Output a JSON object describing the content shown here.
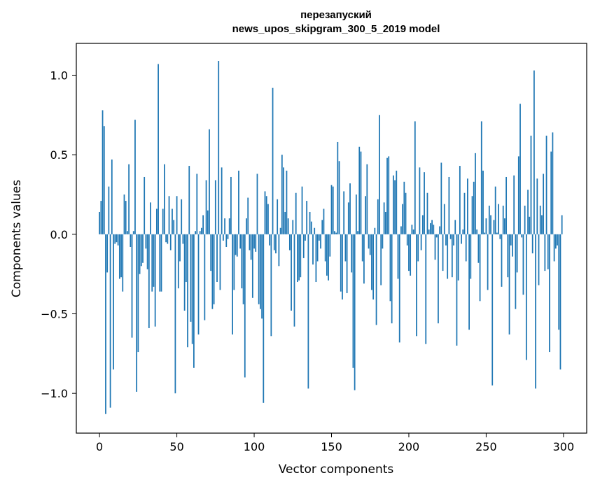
{
  "chart_data": {
    "type": "bar",
    "title": "перезапуский\nnews_upos_skipgram_300_5_2019 model",
    "xlabel": "Vector components",
    "ylabel": "Components values",
    "xlim": [
      -15,
      315
    ],
    "ylim": [
      -1.25,
      1.2
    ],
    "x_ticks": [
      0,
      50,
      100,
      150,
      200,
      250,
      300
    ],
    "x_tick_labels": [
      "0",
      "50",
      "100",
      "150",
      "200",
      "250",
      "300"
    ],
    "y_ticks": [
      1.0,
      0.5,
      0.0,
      -0.5,
      -1.0
    ],
    "y_tick_labels": [
      "1.0",
      "0.5",
      "0.0",
      "−0.5",
      "−1.0"
    ],
    "bar_color": "#1f77b4",
    "grid": false,
    "legend": "none",
    "values": [
      0.14,
      0.21,
      0.78,
      0.68,
      -1.13,
      -0.24,
      0.3,
      -1.09,
      0.47,
      -0.85,
      -0.06,
      -0.05,
      -0.07,
      -0.28,
      -0.27,
      -0.36,
      0.25,
      0.21,
      0.02,
      0.44,
      -0.08,
      -0.65,
      0.02,
      0.72,
      -0.99,
      -0.74,
      -0.25,
      -0.2,
      -0.18,
      0.36,
      -0.09,
      -0.22,
      -0.59,
      0.2,
      -0.36,
      -0.33,
      -0.58,
      0.16,
      1.07,
      -0.36,
      -0.36,
      0.16,
      0.44,
      -0.05,
      -0.06,
      0.24,
      -0.1,
      0.16,
      0.09,
      -1.0,
      0.24,
      -0.34,
      -0.17,
      0.22,
      -0.06,
      -0.48,
      -0.3,
      -0.71,
      0.43,
      -0.55,
      -0.69,
      -0.84,
      0.02,
      0.38,
      -0.63,
      0.02,
      0.04,
      0.12,
      -0.54,
      0.34,
      0.15,
      0.66,
      -0.23,
      -0.47,
      -0.44,
      0.34,
      -0.3,
      1.09,
      -0.35,
      0.42,
      -0.04,
      0.1,
      -0.08,
      -0.03,
      0.1,
      0.36,
      -0.63,
      -0.35,
      -0.13,
      -0.14,
      0.4,
      -0.09,
      -0.34,
      -0.44,
      -0.9,
      0.1,
      0.23,
      -0.1,
      -0.16,
      -0.4,
      -0.09,
      -0.11,
      0.38,
      -0.44,
      -0.47,
      -0.53,
      -1.06,
      0.27,
      0.24,
      0.19,
      -0.07,
      -0.64,
      0.92,
      -0.1,
      -0.12,
      0.22,
      -0.2,
      0.04,
      0.5,
      0.42,
      0.14,
      0.4,
      0.1,
      -0.1,
      -0.48,
      0.09,
      -0.58,
      0.26,
      -0.3,
      -0.29,
      -0.27,
      0.3,
      -0.15,
      -0.04,
      0.21,
      -0.97,
      0.14,
      0.08,
      -0.19,
      0.04,
      -0.3,
      -0.17,
      -0.04,
      -0.09,
      0.09,
      0.16,
      -0.17,
      -0.26,
      -0.29,
      -0.14,
      0.31,
      0.3,
      0.02,
      0.01,
      0.58,
      0.46,
      -0.36,
      -0.41,
      0.27,
      -0.17,
      -0.37,
      0.2,
      0.32,
      -0.24,
      -0.84,
      -0.98,
      0.25,
      0.02,
      0.55,
      0.52,
      -0.17,
      -0.31,
      0.24,
      0.44,
      -0.09,
      -0.13,
      -0.35,
      -0.41,
      0.04,
      -0.57,
      0.22,
      0.75,
      -0.32,
      -0.09,
      0.2,
      0.14,
      0.48,
      0.49,
      -0.42,
      -0.56,
      0.37,
      0.34,
      0.4,
      -0.28,
      -0.68,
      0.05,
      0.19,
      0.33,
      0.26,
      -0.07,
      -0.23,
      -0.26,
      0.06,
      0.03,
      0.71,
      -0.64,
      -0.17,
      0.42,
      -0.1,
      0.12,
      0.39,
      -0.69,
      0.26,
      0.03,
      0.07,
      0.09,
      0.06,
      -0.16,
      -0.02,
      -0.56,
      0.05,
      0.45,
      -0.23,
      0.19,
      -0.07,
      -0.28,
      0.36,
      -0.03,
      -0.27,
      -0.07,
      0.09,
      -0.7,
      -0.29,
      0.43,
      -0.06,
      0.03,
      0.26,
      -0.17,
      0.35,
      -0.6,
      -0.28,
      0.24,
      0.33,
      0.51,
      0.03,
      -0.18,
      -0.42,
      0.71,
      0.4,
      0.01,
      0.1,
      -0.35,
      0.18,
      0.12,
      -0.95,
      0.09,
      0.3,
      0.01,
      0.19,
      -0.03,
      -0.33,
      0.18,
      0.1,
      0.36,
      -0.27,
      -0.63,
      -0.07,
      -0.14,
      0.37,
      -0.47,
      -0.24,
      0.49,
      0.82,
      -0.02,
      -0.38,
      0.18,
      -0.79,
      0.28,
      0.11,
      0.62,
      -0.12,
      1.03,
      -0.97,
      0.35,
      -0.32,
      0.18,
      0.12,
      0.38,
      -0.23,
      0.62,
      -0.22,
      -0.74,
      0.52,
      0.64,
      -0.17,
      -0.09,
      -0.07,
      -0.6,
      -0.85,
      0.12
    ]
  }
}
